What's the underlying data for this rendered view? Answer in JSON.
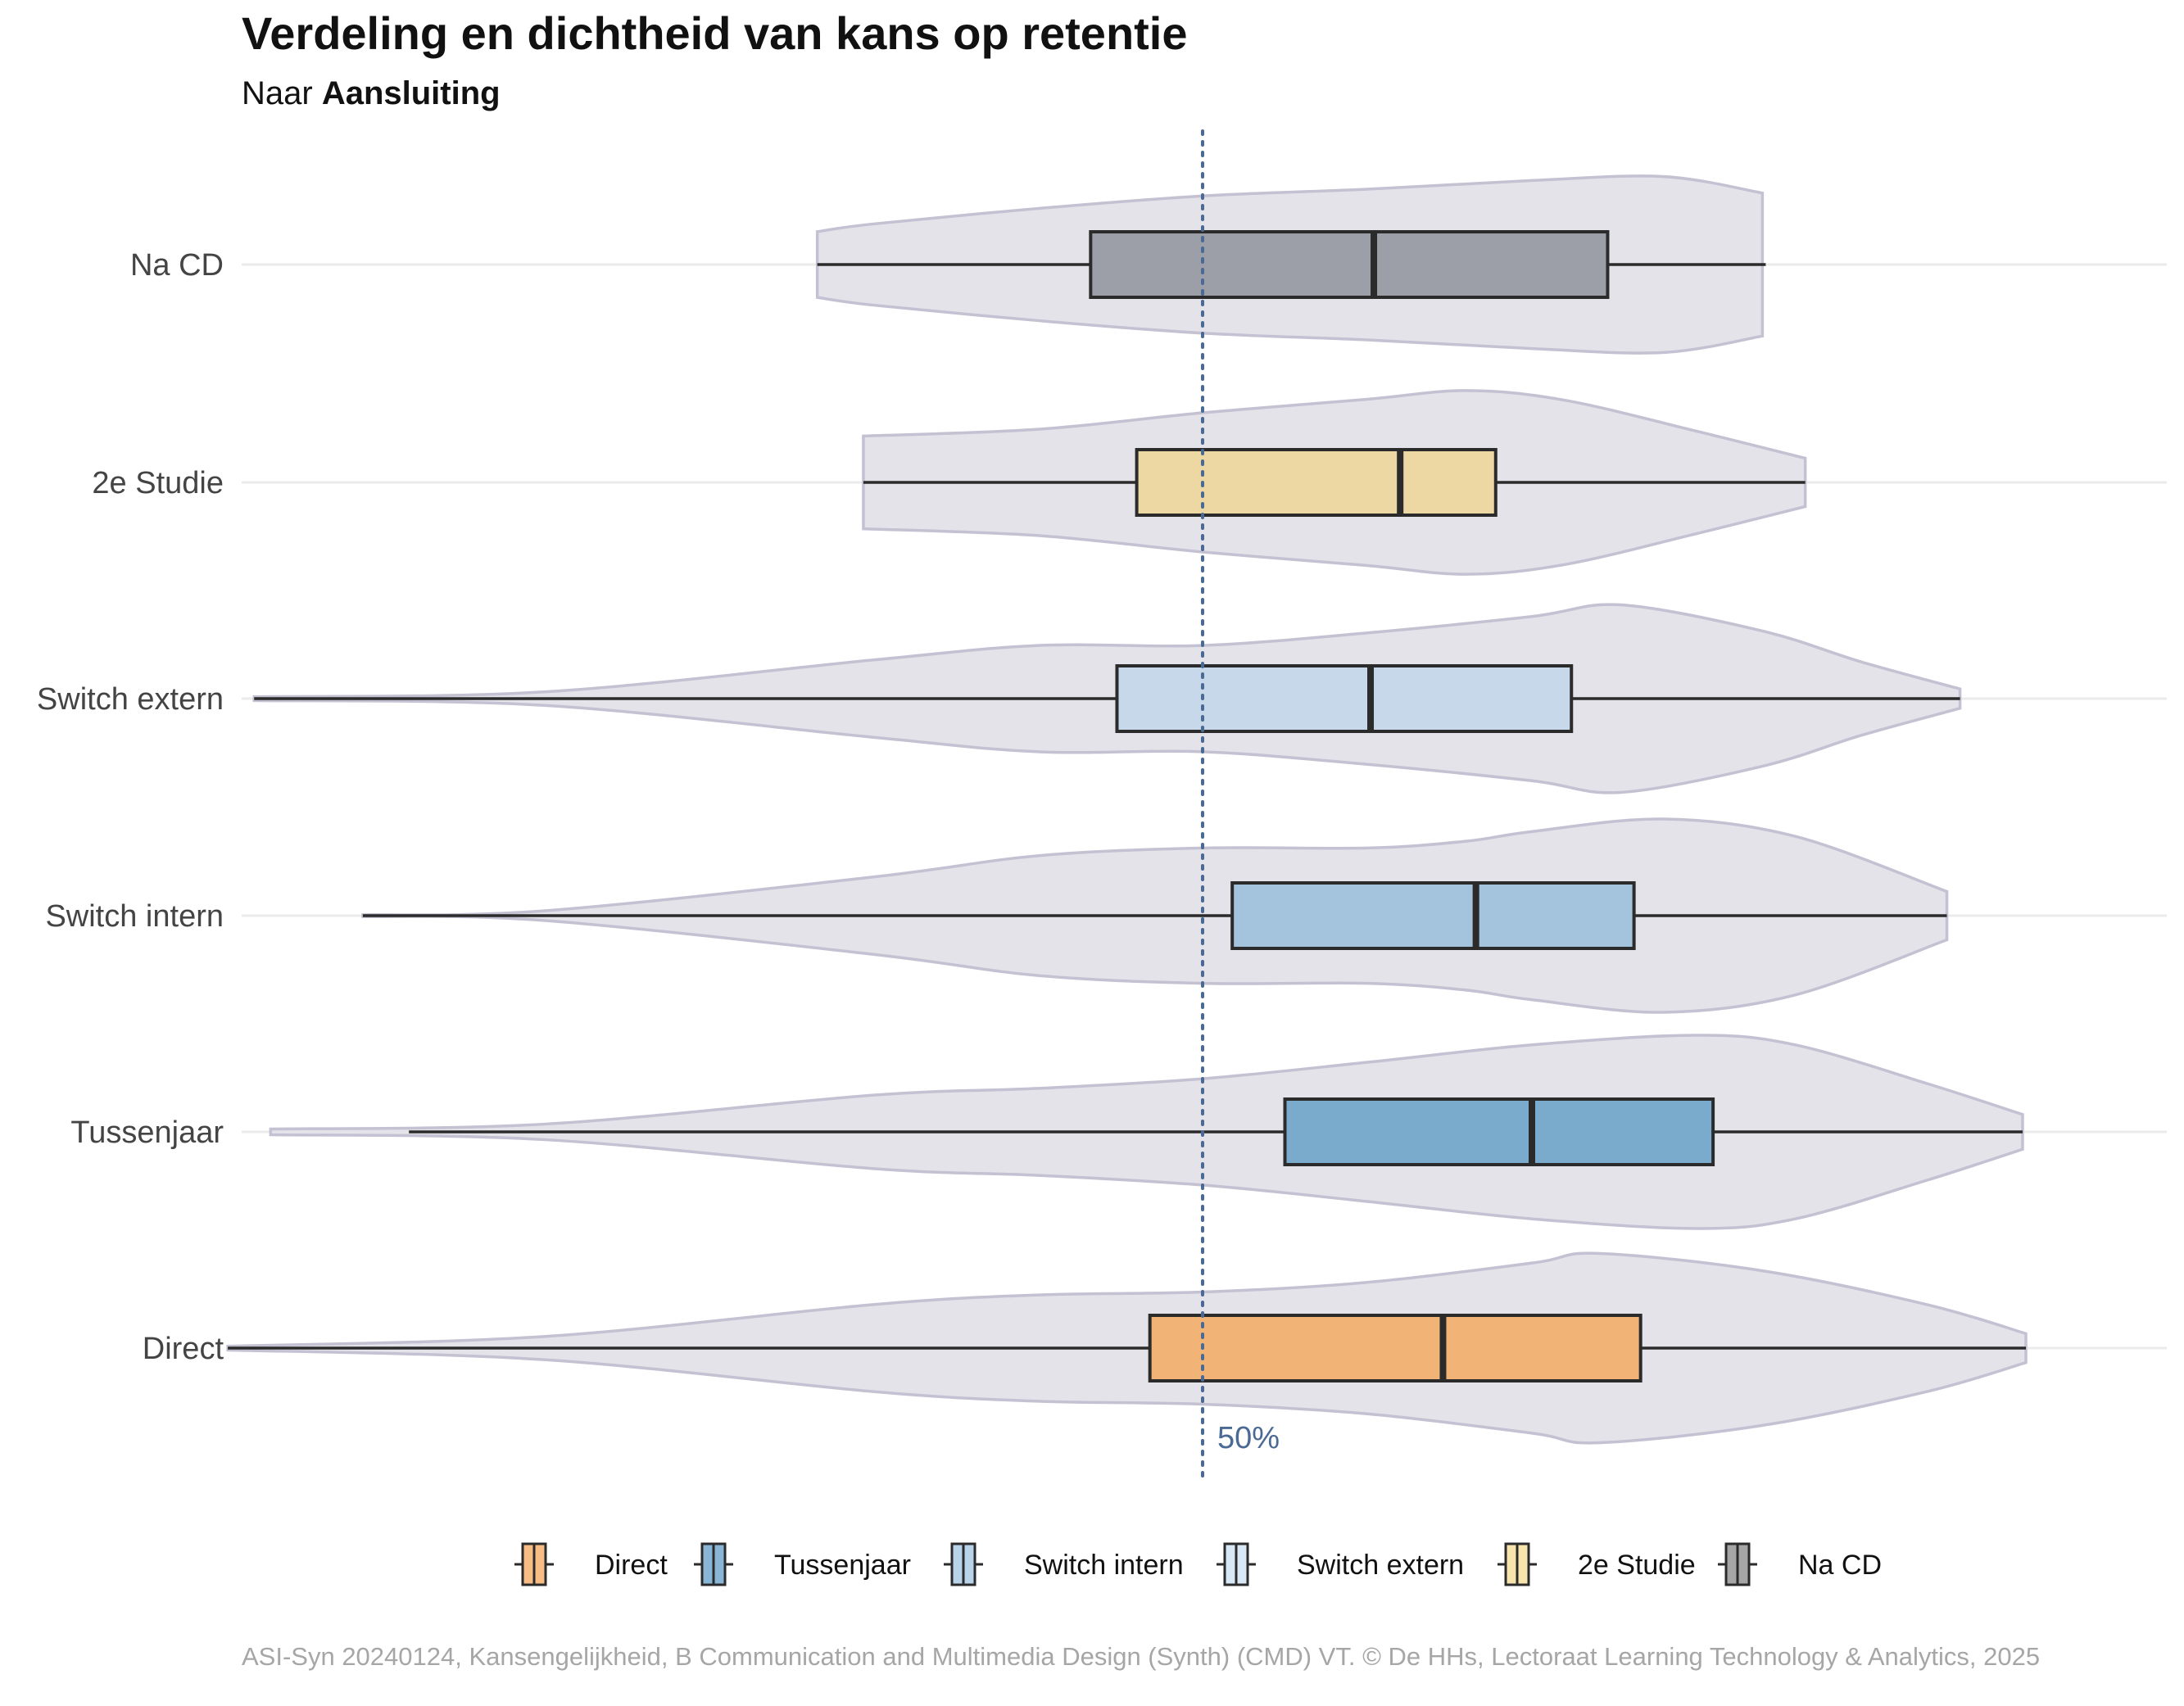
{
  "title": "Verdeling en dichtheid van kans op retentie",
  "subtitle_prefix": "Naar ",
  "subtitle_bold": "Aansluiting",
  "caption": "ASI-Syn 20240124, Kansengelijkheid, B Communication and Multimedia Design (Synth) (CMD) VT. © De HHs, Lectoraat Learning Technology & Analytics, 2025",
  "chart_data": {
    "type": "violin+boxplot",
    "orientation": "horizontal",
    "x_axis_ticks_shown": false,
    "xlim": [
      0.1,
      1.0
    ],
    "reference_line": {
      "value": 0.5,
      "label": "50%",
      "style": "dotted",
      "color": "#4a6a94"
    },
    "grid": "horizontal major lines only",
    "legend_position": "bottom",
    "violin_fill": "#e4e3ea",
    "violin_stroke": "#c3c1d2",
    "categories": [
      "Na CD",
      "2e Studie",
      "Switch extern",
      "Switch intern",
      "Tussenjaar",
      "Direct"
    ],
    "series": [
      {
        "name": "Na CD",
        "color": "#9c9fa7",
        "legend_color": "#a6a6a6",
        "whisker_low": 0.383,
        "q1": 0.466,
        "median": 0.552,
        "q3": 0.623,
        "whisker_high": 0.671,
        "density": [
          [
            0.383,
            0.34
          ],
          [
            0.4,
            0.42
          ],
          [
            0.45,
            0.58
          ],
          [
            0.5,
            0.71
          ],
          [
            0.55,
            0.78
          ],
          [
            0.6,
            0.87
          ],
          [
            0.64,
            0.91
          ],
          [
            0.67,
            0.74
          ]
        ]
      },
      {
        "name": "2e Studie",
        "color": "#edd8a4",
        "legend_color": "#f8e4ad",
        "whisker_low": 0.397,
        "q1": 0.48,
        "median": 0.56,
        "q3": 0.589,
        "whisker_high": 0.683,
        "density": [
          [
            0.397,
            0.48
          ],
          [
            0.45,
            0.55
          ],
          [
            0.5,
            0.72
          ],
          [
            0.55,
            0.86
          ],
          [
            0.58,
            0.95
          ],
          [
            0.61,
            0.85
          ],
          [
            0.65,
            0.53
          ],
          [
            0.683,
            0.25
          ]
        ]
      },
      {
        "name": "Switch extern",
        "color": "#c6d8e9",
        "legend_color": "#d8e8f6",
        "whisker_low": 0.212,
        "q1": 0.474,
        "median": 0.551,
        "q3": 0.612,
        "whisker_high": 0.73,
        "density": [
          [
            0.212,
            0.02
          ],
          [
            0.3,
            0.07
          ],
          [
            0.4,
            0.4
          ],
          [
            0.45,
            0.55
          ],
          [
            0.5,
            0.55
          ],
          [
            0.55,
            0.68
          ],
          [
            0.6,
            0.85
          ],
          [
            0.627,
            0.97
          ],
          [
            0.67,
            0.7
          ],
          [
            0.7,
            0.38
          ],
          [
            0.73,
            0.1
          ]
        ]
      },
      {
        "name": "Switch intern",
        "color": "#a4c4de",
        "legend_color": "#b9d3ea",
        "whisker_low": 0.245,
        "q1": 0.509,
        "median": 0.583,
        "q3": 0.631,
        "whisker_high": 0.726,
        "density": [
          [
            0.245,
            0.01
          ],
          [
            0.3,
            0.05
          ],
          [
            0.4,
            0.4
          ],
          [
            0.45,
            0.62
          ],
          [
            0.5,
            0.7
          ],
          [
            0.55,
            0.7
          ],
          [
            0.58,
            0.77
          ],
          [
            0.6,
            0.87
          ],
          [
            0.64,
            1.0
          ],
          [
            0.68,
            0.82
          ],
          [
            0.726,
            0.25
          ]
        ]
      },
      {
        "name": "Tussenjaar",
        "color": "#7aaacc",
        "legend_color": "#89b5d6",
        "whisker_low": 0.259,
        "q1": 0.525,
        "median": 0.6,
        "q3": 0.655,
        "whisker_high": 0.749,
        "density": [
          [
            0.217,
            0.03
          ],
          [
            0.3,
            0.08
          ],
          [
            0.4,
            0.38
          ],
          [
            0.45,
            0.45
          ],
          [
            0.5,
            0.55
          ],
          [
            0.55,
            0.72
          ],
          [
            0.6,
            0.9
          ],
          [
            0.65,
            1.0
          ],
          [
            0.68,
            0.9
          ],
          [
            0.72,
            0.5
          ],
          [
            0.749,
            0.18
          ]
        ]
      },
      {
        "name": "Direct",
        "color": "#f2b476",
        "legend_color": "#f7bd84",
        "whisker_low": 0.204,
        "q1": 0.484,
        "median": 0.573,
        "q3": 0.633,
        "whisker_high": 0.75,
        "density": [
          [
            0.204,
            0.02
          ],
          [
            0.3,
            0.12
          ],
          [
            0.4,
            0.45
          ],
          [
            0.45,
            0.55
          ],
          [
            0.5,
            0.58
          ],
          [
            0.55,
            0.68
          ],
          [
            0.6,
            0.88
          ],
          [
            0.62,
            0.98
          ],
          [
            0.67,
            0.8
          ],
          [
            0.72,
            0.45
          ],
          [
            0.75,
            0.15
          ]
        ]
      }
    ],
    "legend": [
      "Direct",
      "Tussenjaar",
      "Switch intern",
      "Switch extern",
      "2e Studie",
      "Na CD"
    ]
  }
}
